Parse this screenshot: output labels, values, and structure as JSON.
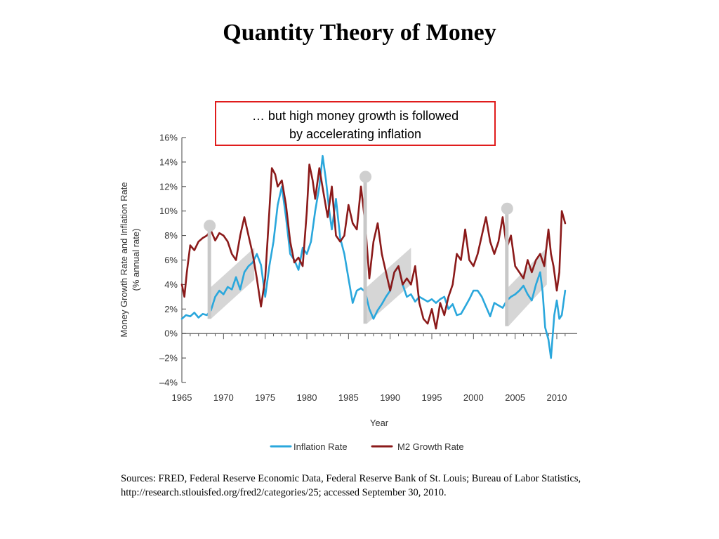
{
  "slide": {
    "title": "Quantity Theory of Money",
    "callout": {
      "line1": "… but high money growth is followed",
      "line2": "by accelerating inflation"
    },
    "sources": {
      "line1": "Sources: FRED, Federal Reserve Economic Data, Federal Reserve Bank of St. Louis; Bureau of Labor Statistics,",
      "line2": "http://research.stlouisfed.org/fred2/categories/25; accessed September 30, 2010."
    }
  },
  "chart_data": {
    "type": "line",
    "xlabel": "Year",
    "ylabel_line1": "Money Growth Rate and Inflation Rate",
    "ylabel_line2": "(% annual rate)",
    "xlim": [
      1965,
      2012
    ],
    "ylim": [
      -4,
      16
    ],
    "x_ticks": [
      1965,
      1970,
      1975,
      1980,
      1985,
      1990,
      1995,
      2000,
      2005,
      2010
    ],
    "x_tick_labels": [
      "1965",
      "1970",
      "1975",
      "1980",
      "1985",
      "1990",
      "1995",
      "2000",
      "2005",
      "2010"
    ],
    "y_ticks": [
      -4,
      -2,
      0,
      2,
      4,
      6,
      8,
      10,
      12,
      14,
      16
    ],
    "y_tick_labels": [
      "–4%",
      "–2%",
      "0%",
      "2%",
      "4%",
      "6%",
      "8%",
      "10%",
      "12%",
      "14%",
      "16%"
    ],
    "legend_position": "bottom",
    "grid": false,
    "series": [
      {
        "name": "Inflation Rate",
        "color": "#2aa7dc",
        "points": [
          [
            1965,
            1.2
          ],
          [
            1965.5,
            1.5
          ],
          [
            1966,
            1.4
          ],
          [
            1966.5,
            1.7
          ],
          [
            1967,
            1.3
          ],
          [
            1967.5,
            1.6
          ],
          [
            1968,
            1.5
          ],
          [
            1968.5,
            1.9
          ],
          [
            1969,
            3.0
          ],
          [
            1969.5,
            3.5
          ],
          [
            1970,
            3.2
          ],
          [
            1970.5,
            3.8
          ],
          [
            1971,
            3.6
          ],
          [
            1971.5,
            4.6
          ],
          [
            1972,
            3.6
          ],
          [
            1972.5,
            5.0
          ],
          [
            1973,
            5.5
          ],
          [
            1973.5,
            5.8
          ],
          [
            1974,
            6.5
          ],
          [
            1974.5,
            5.6
          ],
          [
            1975,
            3.0
          ],
          [
            1975.5,
            5.5
          ],
          [
            1976,
            7.5
          ],
          [
            1976.5,
            10.5
          ],
          [
            1977,
            12.0
          ],
          [
            1977.5,
            9.5
          ],
          [
            1978,
            6.5
          ],
          [
            1978.5,
            6.0
          ],
          [
            1979,
            5.2
          ],
          [
            1979.5,
            7.0
          ],
          [
            1980,
            6.5
          ],
          [
            1980.5,
            7.5
          ],
          [
            1981,
            10.0
          ],
          [
            1981.5,
            12.0
          ],
          [
            1981.9,
            14.5
          ],
          [
            1982.3,
            12.5
          ],
          [
            1982.7,
            10.0
          ],
          [
            1983,
            8.5
          ],
          [
            1983.5,
            11.0
          ],
          [
            1984,
            7.8
          ],
          [
            1984.5,
            6.5
          ],
          [
            1985,
            4.5
          ],
          [
            1985.5,
            2.5
          ],
          [
            1986,
            3.5
          ],
          [
            1986.5,
            3.7
          ],
          [
            1987,
            3.4
          ],
          [
            1987.5,
            2.0
          ],
          [
            1988,
            1.2
          ],
          [
            1988.5,
            1.9
          ],
          [
            1989,
            2.4
          ],
          [
            1989.5,
            3.0
          ],
          [
            1990,
            3.5
          ],
          [
            1990.5,
            5.0
          ],
          [
            1991,
            5.5
          ],
          [
            1991.5,
            4.0
          ],
          [
            1992,
            3.0
          ],
          [
            1992.5,
            3.2
          ],
          [
            1993,
            2.6
          ],
          [
            1993.5,
            3.0
          ],
          [
            1994,
            2.8
          ],
          [
            1994.5,
            2.6
          ],
          [
            1995,
            2.8
          ],
          [
            1995.5,
            2.5
          ],
          [
            1996,
            2.8
          ],
          [
            1996.5,
            3.0
          ],
          [
            1997,
            2.0
          ],
          [
            1997.5,
            2.4
          ],
          [
            1998,
            1.5
          ],
          [
            1998.5,
            1.6
          ],
          [
            1999,
            2.2
          ],
          [
            1999.5,
            2.8
          ],
          [
            2000,
            3.5
          ],
          [
            2000.5,
            3.5
          ],
          [
            2001,
            3.0
          ],
          [
            2001.5,
            2.2
          ],
          [
            2002,
            1.4
          ],
          [
            2002.5,
            2.5
          ],
          [
            2003,
            2.3
          ],
          [
            2003.5,
            2.1
          ],
          [
            2004,
            2.7
          ],
          [
            2004.5,
            3.0
          ],
          [
            2005,
            3.2
          ],
          [
            2005.5,
            3.5
          ],
          [
            2006,
            3.9
          ],
          [
            2006.5,
            3.2
          ],
          [
            2007,
            2.7
          ],
          [
            2007.5,
            4.0
          ],
          [
            2008,
            5.0
          ],
          [
            2008.3,
            3.4
          ],
          [
            2008.6,
            0.5
          ],
          [
            2009,
            -0.5
          ],
          [
            2009.3,
            -2.0
          ],
          [
            2009.7,
            1.5
          ],
          [
            2010,
            2.7
          ],
          [
            2010.3,
            1.2
          ],
          [
            2010.6,
            1.5
          ],
          [
            2011,
            3.5
          ]
        ]
      },
      {
        "name": "M2 Growth Rate",
        "color": "#8b1a1a",
        "points": [
          [
            1965,
            4.0
          ],
          [
            1965.3,
            3.0
          ],
          [
            1965.6,
            5.0
          ],
          [
            1966,
            7.2
          ],
          [
            1966.5,
            6.8
          ],
          [
            1967,
            7.5
          ],
          [
            1967.5,
            7.8
          ],
          [
            1968,
            8.0
          ],
          [
            1968.5,
            8.4
          ],
          [
            1969,
            7.6
          ],
          [
            1969.5,
            8.2
          ],
          [
            1970,
            8.0
          ],
          [
            1970.5,
            7.5
          ],
          [
            1971,
            6.5
          ],
          [
            1971.5,
            6.0
          ],
          [
            1972,
            8.0
          ],
          [
            1972.5,
            9.5
          ],
          [
            1973,
            8.0
          ],
          [
            1973.5,
            6.5
          ],
          [
            1974,
            4.5
          ],
          [
            1974.5,
            2.2
          ],
          [
            1975,
            4.5
          ],
          [
            1975.5,
            10.0
          ],
          [
            1975.8,
            13.5
          ],
          [
            1976.2,
            13.0
          ],
          [
            1976.5,
            12.0
          ],
          [
            1977,
            12.5
          ],
          [
            1977.5,
            10.5
          ],
          [
            1978,
            7.5
          ],
          [
            1978.5,
            5.8
          ],
          [
            1979,
            6.2
          ],
          [
            1979.5,
            5.5
          ],
          [
            1980,
            10.0
          ],
          [
            1980.3,
            13.8
          ],
          [
            1980.7,
            12.5
          ],
          [
            1981,
            11.0
          ],
          [
            1981.5,
            13.5
          ],
          [
            1982,
            11.5
          ],
          [
            1982.5,
            9.5
          ],
          [
            1983,
            12.0
          ],
          [
            1983.5,
            8.0
          ],
          [
            1984,
            7.5
          ],
          [
            1984.5,
            8.0
          ],
          [
            1985,
            10.5
          ],
          [
            1985.5,
            9.0
          ],
          [
            1986,
            8.5
          ],
          [
            1986.5,
            12.0
          ],
          [
            1987,
            9.0
          ],
          [
            1987.5,
            4.5
          ],
          [
            1988,
            7.5
          ],
          [
            1988.5,
            9.0
          ],
          [
            1989,
            6.5
          ],
          [
            1989.5,
            5.0
          ],
          [
            1990,
            3.5
          ],
          [
            1990.5,
            5.0
          ],
          [
            1991,
            5.5
          ],
          [
            1991.5,
            4.0
          ],
          [
            1992,
            4.5
          ],
          [
            1992.5,
            4.0
          ],
          [
            1993,
            5.5
          ],
          [
            1993.5,
            2.5
          ],
          [
            1994,
            1.2
          ],
          [
            1994.5,
            0.8
          ],
          [
            1995,
            2.0
          ],
          [
            1995.5,
            0.4
          ],
          [
            1996,
            2.5
          ],
          [
            1996.5,
            1.5
          ],
          [
            1997,
            3.0
          ],
          [
            1997.5,
            4.0
          ],
          [
            1998,
            6.5
          ],
          [
            1998.5,
            6.0
          ],
          [
            1999,
            8.5
          ],
          [
            1999.5,
            6.0
          ],
          [
            2000,
            5.5
          ],
          [
            2000.5,
            6.5
          ],
          [
            2001,
            8.0
          ],
          [
            2001.5,
            9.5
          ],
          [
            2002,
            7.5
          ],
          [
            2002.5,
            6.5
          ],
          [
            2003,
            7.5
          ],
          [
            2003.5,
            9.5
          ],
          [
            2004,
            7.0
          ],
          [
            2004.5,
            8.0
          ],
          [
            2005,
            5.5
          ],
          [
            2005.5,
            5.0
          ],
          [
            2006,
            4.5
          ],
          [
            2006.5,
            6.0
          ],
          [
            2007,
            5.0
          ],
          [
            2007.5,
            6.0
          ],
          [
            2008,
            6.5
          ],
          [
            2008.5,
            5.5
          ],
          [
            2009,
            8.5
          ],
          [
            2009.3,
            6.5
          ],
          [
            2009.6,
            5.5
          ],
          [
            2010,
            3.5
          ],
          [
            2010.3,
            5.0
          ],
          [
            2010.6,
            10.0
          ],
          [
            2010.8,
            9.5
          ],
          [
            2011,
            9.0
          ]
        ]
      }
    ],
    "annotations": [
      {
        "year": 1968.3,
        "top": 8.8,
        "bottom": 1.2,
        "band_start": 1968.5,
        "band_end": 1973.7,
        "band_low_start": 1.2,
        "band_high_start": 3.8,
        "band_low_end": 4.4,
        "band_high_end": 7.0
      },
      {
        "year": 1987.0,
        "top": 12.8,
        "bottom": 0.8,
        "band_start": 1987.2,
        "band_end": 1992.5,
        "band_low_start": 0.8,
        "band_high_start": 3.8,
        "band_low_end": 4.0,
        "band_high_end": 7.0
      },
      {
        "year": 2004.0,
        "top": 10.2,
        "bottom": 0.6,
        "band_start": 2004.2,
        "band_end": 2008.8,
        "band_low_start": 0.6,
        "band_high_start": 3.8,
        "band_low_end": 4.0,
        "band_high_end": 7.0
      }
    ]
  }
}
